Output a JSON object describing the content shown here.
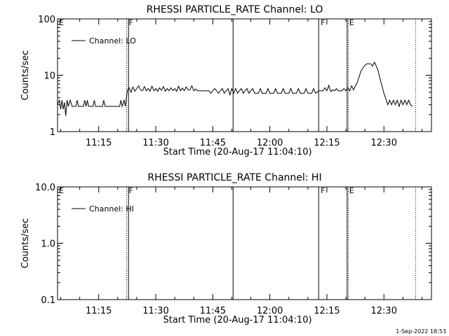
{
  "footer_timestamp": "1-Sep-2022 18:53",
  "chart_data": [
    {
      "type": "line",
      "title": "RHESSI PARTICLE_RATE Channel: LO",
      "xlabel": "Start Time (20-Aug-17 11:04:10)",
      "ylabel": "Counts/sec",
      "y_scale": "log",
      "ylim": [
        1,
        100
      ],
      "yticks": [
        "1",
        "10",
        "100"
      ],
      "xlim": [
        "11:04:10",
        "12:42:30"
      ],
      "xticks": [
        "11:15",
        "11:30",
        "11:45",
        "12:00",
        "12:15",
        "12:30"
      ],
      "legend": "Channel: LO",
      "legend_position": "top-left",
      "flags": [
        {
          "label": "E",
          "x": "11:04:10"
        },
        {
          "label": "F",
          "x": "11:22:30"
        },
        {
          "label": "F",
          "x": "12:13:00"
        },
        {
          "label": "E",
          "x": "12:20:30"
        }
      ],
      "event_lines": [
        {
          "x": "11:22:20",
          "style": "dotted"
        },
        {
          "x": "11:22:50",
          "style": "solid"
        },
        {
          "x": "11:50:20",
          "style": "solid"
        },
        {
          "x": "12:12:50",
          "style": "solid"
        },
        {
          "x": "12:20:20",
          "style": "solid"
        },
        {
          "x": "12:20:40",
          "style": "dotted"
        },
        {
          "x": "12:38:20",
          "style": "dotted"
        }
      ],
      "series": [
        {
          "name": "Channel: LO",
          "points": [
            [
              "11:04:10",
              3.0
            ],
            [
              "11:04:40",
              3.6
            ],
            [
              "11:05:00",
              2.5
            ],
            [
              "11:05:20",
              3.6
            ],
            [
              "11:05:40",
              2.5
            ],
            [
              "11:06:00",
              3.3
            ],
            [
              "11:06:20",
              1.9
            ],
            [
              "11:06:40",
              3.6
            ],
            [
              "11:07:00",
              2.8
            ],
            [
              "11:07:30",
              3.6
            ],
            [
              "11:08:00",
              2.8
            ],
            [
              "11:09:00",
              2.8
            ],
            [
              "11:09:20",
              3.6
            ],
            [
              "11:09:40",
              2.8
            ],
            [
              "11:11:00",
              2.8
            ],
            [
              "11:11:20",
              3.6
            ],
            [
              "11:11:40",
              2.8
            ],
            [
              "11:12:00",
              3.6
            ],
            [
              "11:12:20",
              2.8
            ],
            [
              "11:13:30",
              2.8
            ],
            [
              "11:13:50",
              3.6
            ],
            [
              "11:14:10",
              2.8
            ],
            [
              "11:16:00",
              2.8
            ],
            [
              "11:16:20",
              3.6
            ],
            [
              "11:16:40",
              2.8
            ],
            [
              "11:20:30",
              2.8
            ],
            [
              "11:20:50",
              3.6
            ],
            [
              "11:21:10",
              2.8
            ],
            [
              "11:21:40",
              3.6
            ],
            [
              "11:22:00",
              2.8
            ],
            [
              "11:22:30",
              5.3
            ],
            [
              "11:23:00",
              6.0
            ],
            [
              "11:23:30",
              5.0
            ],
            [
              "11:24:00",
              6.2
            ],
            [
              "11:24:30",
              5.2
            ],
            [
              "11:25:00",
              5.8
            ],
            [
              "11:25:30",
              6.5
            ],
            [
              "11:26:00",
              5.5
            ],
            [
              "11:26:30",
              5.3
            ],
            [
              "11:27:00",
              6.3
            ],
            [
              "11:27:30",
              5.3
            ],
            [
              "11:28:00",
              5.8
            ],
            [
              "11:28:30",
              5.2
            ],
            [
              "11:29:00",
              6.4
            ],
            [
              "11:29:30",
              5.3
            ],
            [
              "11:30:00",
              5.8
            ],
            [
              "11:30:30",
              5.2
            ],
            [
              "11:31:00",
              6.0
            ],
            [
              "11:31:30",
              5.4
            ],
            [
              "11:32:00",
              6.3
            ],
            [
              "11:32:30",
              5.2
            ],
            [
              "11:33:00",
              5.8
            ],
            [
              "11:33:30",
              5.3
            ],
            [
              "11:34:00",
              6.0
            ],
            [
              "11:34:30",
              5.3
            ],
            [
              "11:35:00",
              5.8
            ],
            [
              "11:35:30",
              5.2
            ],
            [
              "11:36:00",
              6.4
            ],
            [
              "11:36:30",
              5.3
            ],
            [
              "11:37:00",
              5.9
            ],
            [
              "11:37:30",
              5.3
            ],
            [
              "11:38:00",
              6.2
            ],
            [
              "11:38:30",
              5.5
            ],
            [
              "11:39:00",
              5.5
            ],
            [
              "11:39:30",
              6.5
            ],
            [
              "11:40:00",
              5.3
            ],
            [
              "11:40:30",
              5.7
            ],
            [
              "11:41:00",
              5.3
            ],
            [
              "11:42:00",
              5.3
            ],
            [
              "11:43:00",
              5.3
            ],
            [
              "11:44:00",
              5.3
            ],
            [
              "11:44:30",
              4.8
            ],
            [
              "11:45:00",
              5.3
            ],
            [
              "11:45:30",
              5.8
            ],
            [
              "11:46:00",
              5.3
            ],
            [
              "11:46:30",
              4.8
            ],
            [
              "11:47:00",
              5.3
            ],
            [
              "11:47:30",
              5.8
            ],
            [
              "11:48:00",
              4.8
            ],
            [
              "11:48:30",
              5.3
            ],
            [
              "11:49:00",
              5.8
            ],
            [
              "11:49:30",
              4.5
            ],
            [
              "11:50:00",
              5.8
            ],
            [
              "11:50:30",
              4.8
            ],
            [
              "11:51:00",
              5.8
            ],
            [
              "11:51:30",
              4.8
            ],
            [
              "11:52:00",
              5.3
            ],
            [
              "11:52:30",
              5.8
            ],
            [
              "11:53:00",
              4.8
            ],
            [
              "11:53:30",
              5.3
            ],
            [
              "11:54:00",
              5.8
            ],
            [
              "11:54:30",
              4.8
            ],
            [
              "11:55:00",
              5.3
            ],
            [
              "11:55:30",
              5.8
            ],
            [
              "11:56:00",
              4.8
            ],
            [
              "11:57:00",
              4.8
            ],
            [
              "11:57:30",
              5.8
            ],
            [
              "11:58:00",
              4.8
            ],
            [
              "11:59:00",
              4.8
            ],
            [
              "11:59:30",
              5.8
            ],
            [
              "12:00:00",
              4.8
            ],
            [
              "12:01:00",
              4.8
            ],
            [
              "12:01:30",
              5.8
            ],
            [
              "12:02:00",
              4.8
            ],
            [
              "12:03:00",
              4.8
            ],
            [
              "12:03:30",
              5.8
            ],
            [
              "12:04:00",
              4.8
            ],
            [
              "12:05:00",
              4.8
            ],
            [
              "12:05:30",
              5.8
            ],
            [
              "12:06:00",
              4.8
            ],
            [
              "12:07:00",
              4.8
            ],
            [
              "12:07:30",
              5.8
            ],
            [
              "12:08:00",
              4.8
            ],
            [
              "12:09:00",
              4.8
            ],
            [
              "12:09:30",
              5.8
            ],
            [
              "12:10:00",
              4.8
            ],
            [
              "12:11:00",
              4.8
            ],
            [
              "12:11:30",
              5.8
            ],
            [
              "12:12:00",
              4.8
            ],
            [
              "12:13:00",
              5.3
            ],
            [
              "12:14:00",
              5.3
            ],
            [
              "12:14:30",
              6.0
            ],
            [
              "12:15:00",
              5.3
            ],
            [
              "12:15:30",
              6.6
            ],
            [
              "12:16:00",
              5.1
            ],
            [
              "12:16:30",
              5.5
            ],
            [
              "12:17:00",
              5.3
            ],
            [
              "12:17:30",
              5.8
            ],
            [
              "12:18:00",
              5.3
            ],
            [
              "12:19:00",
              5.3
            ],
            [
              "12:19:30",
              5.8
            ],
            [
              "12:20:00",
              5.3
            ],
            [
              "12:20:30",
              6.0
            ],
            [
              "12:21:00",
              5.3
            ],
            [
              "12:21:30",
              6.5
            ],
            [
              "12:22:00",
              5.5
            ],
            [
              "12:22:30",
              6.5
            ],
            [
              "12:23:00",
              7.5
            ],
            [
              "12:23:30",
              9.5
            ],
            [
              "12:24:00",
              12.0
            ],
            [
              "12:24:30",
              13.5
            ],
            [
              "12:25:00",
              15.0
            ],
            [
              "12:25:30",
              16.0
            ],
            [
              "12:26:00",
              16.0
            ],
            [
              "12:26:30",
              16.0
            ],
            [
              "12:27:00",
              14.5
            ],
            [
              "12:27:30",
              17.0
            ],
            [
              "12:28:00",
              14.5
            ],
            [
              "12:28:30",
              12.0
            ],
            [
              "12:29:00",
              8.5
            ],
            [
              "12:29:30",
              6.5
            ],
            [
              "12:30:00",
              4.8
            ],
            [
              "12:30:30",
              3.8
            ],
            [
              "12:31:00",
              3.0
            ],
            [
              "12:31:30",
              3.6
            ],
            [
              "12:32:00",
              3.0
            ],
            [
              "12:32:30",
              3.6
            ],
            [
              "12:33:00",
              3.0
            ],
            [
              "12:33:30",
              3.6
            ],
            [
              "12:34:00",
              2.8
            ],
            [
              "12:34:30",
              3.6
            ],
            [
              "12:35:00",
              3.0
            ],
            [
              "12:35:30",
              3.6
            ],
            [
              "12:36:00",
              3.0
            ],
            [
              "12:36:30",
              3.6
            ],
            [
              "12:37:00",
              3.0
            ],
            [
              "12:37:30",
              2.8
            ]
          ]
        }
      ]
    },
    {
      "type": "line",
      "title": "RHESSI PARTICLE_RATE Channel: HI",
      "xlabel": "Start Time (20-Aug-17 11:04:10)",
      "ylabel": "Counts/sec",
      "y_scale": "log",
      "ylim": [
        0.1,
        10
      ],
      "yticks": [
        "0.1",
        "1.0",
        "10.0"
      ],
      "xlim": [
        "11:04:10",
        "12:42:30"
      ],
      "xticks": [
        "11:15",
        "11:30",
        "11:45",
        "12:00",
        "12:15",
        "12:30"
      ],
      "legend": "Channel: HI",
      "legend_position": "top-left",
      "flags": [
        {
          "label": "E",
          "x": "11:04:10"
        },
        {
          "label": "F",
          "x": "11:22:30"
        },
        {
          "label": "F",
          "x": "12:13:00"
        },
        {
          "label": "E",
          "x": "12:20:30"
        }
      ],
      "event_lines": [
        {
          "x": "11:22:20",
          "style": "dotted"
        },
        {
          "x": "11:22:50",
          "style": "solid"
        },
        {
          "x": "11:50:20",
          "style": "solid"
        },
        {
          "x": "12:12:50",
          "style": "solid"
        },
        {
          "x": "12:20:20",
          "style": "solid"
        },
        {
          "x": "12:20:40",
          "style": "dotted"
        },
        {
          "x": "12:38:20",
          "style": "dotted"
        }
      ],
      "series": [
        {
          "name": "Channel: HI",
          "points": []
        }
      ]
    }
  ]
}
